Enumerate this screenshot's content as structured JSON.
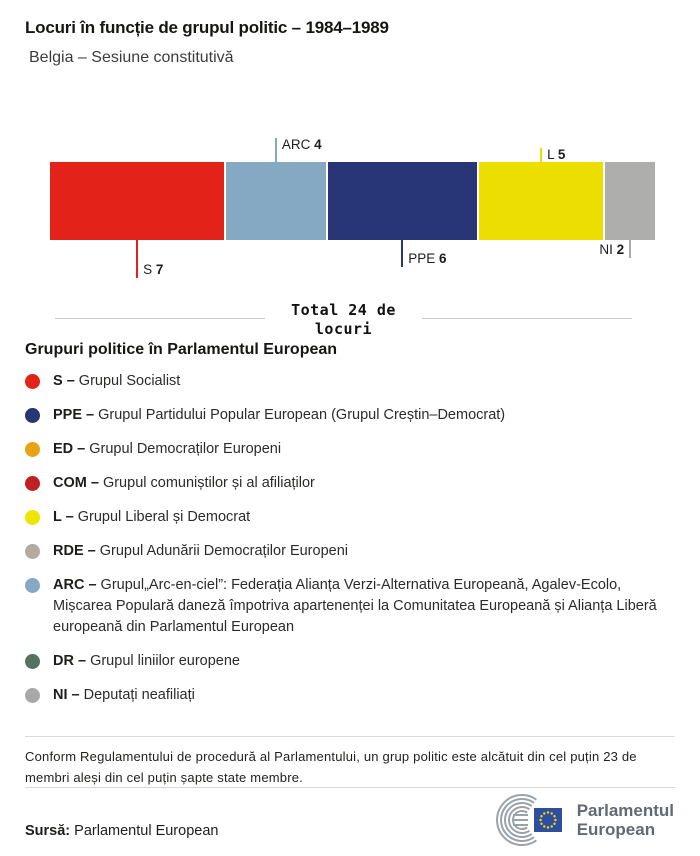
{
  "header": {
    "title": "Locuri în funcție de grupul politic – 1984–1989",
    "subtitle": "Belgia – Sesiune constitutivă"
  },
  "chart_data": {
    "type": "bar",
    "title": "Locuri în funcție de grupul politic – 1984–1989",
    "subtitle": "Belgia – Sesiune constitutivă",
    "total_seats": 24,
    "total_label_line1": "Total 24 de",
    "total_label_line2": "locuri",
    "categories": [
      "S",
      "ARC",
      "PPE",
      "L",
      "NI"
    ],
    "values": [
      7,
      4,
      6,
      5,
      2
    ],
    "series": [
      {
        "code": "S",
        "seats": 7,
        "color": "#e32219",
        "label_side": "below"
      },
      {
        "code": "ARC",
        "seats": 4,
        "color": "#85a9c2",
        "label_side": "above"
      },
      {
        "code": "PPE",
        "seats": 6,
        "color": "#283577",
        "label_side": "below"
      },
      {
        "code": "L",
        "seats": 5,
        "color": "#ecdf00",
        "label_side": "above"
      },
      {
        "code": "NI",
        "seats": 2,
        "color": "#aeaeac",
        "label_side": "below"
      }
    ]
  },
  "legend": {
    "heading": "Grupuri politice în Parlamentul European",
    "separator": "–",
    "items": [
      {
        "code": "S",
        "name": "Grupul Socialist",
        "color": "#e32219"
      },
      {
        "code": "PPE",
        "name": "Grupul Partidului Popular European (Grupul Creștin–Democrat)",
        "color": "#283577"
      },
      {
        "code": "ED",
        "name": "Grupul Democraților Europeni",
        "color": "#e9a115"
      },
      {
        "code": "COM",
        "name": "Grupul comuniștilor și al afiliaților",
        "color": "#c01f24"
      },
      {
        "code": "L",
        "name": "Grupul Liberal și Democrat",
        "color": "#ece600"
      },
      {
        "code": "RDE",
        "name": "Grupul Adunării Democraților Europeni",
        "color": "#b4aa9d"
      },
      {
        "code": "ARC",
        "name": "Grupul„Arc-en-ciel”: Federația Alianța Verzi-Alternativa Europeană, Agalev-Ecolo, Mișcarea Populară daneză împotriva apartenenței la Comunitatea Europeană și Alianța Liberă europeană din Parlamentul European",
        "color": "#85a9c2"
      },
      {
        "code": "DR",
        "name": "Grupul liniilor europene",
        "color": "#547263"
      },
      {
        "code": "NI",
        "name": "Deputați neafiliați",
        "color": "#a8a8a6"
      }
    ]
  },
  "footnote": "Conform Regulamentului de procedură al Parlamentului, un grup politic este alcătuit din cel puțin 23 de membri aleși din cel puțin șapte state membre.",
  "source": {
    "label": "Sursă:",
    "value": "Parlamentul European"
  },
  "logo": {
    "line1": "Parlamentul",
    "line2": "European"
  },
  "colors": {
    "eu_flag_blue": "#2d4f9e",
    "eu_star_yellow": "#ffd617",
    "hemicycle_gray": "#9aa1a8",
    "divider_gray": "#d9d9d9"
  }
}
